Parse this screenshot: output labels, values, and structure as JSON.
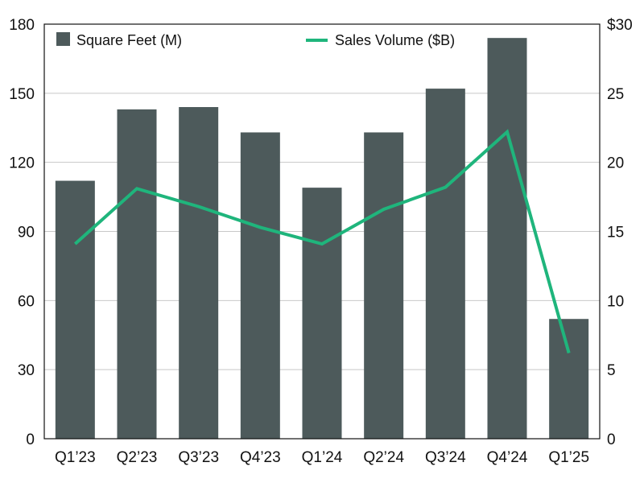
{
  "chart_data": {
    "type": "bar",
    "categories": [
      "Q1’23",
      "Q2’23",
      "Q3’23",
      "Q4’23",
      "Q1’24",
      "Q2’24",
      "Q3’24",
      "Q4’24",
      "Q1’25"
    ],
    "series": [
      {
        "name": "Square Feet (M)",
        "type": "bar",
        "axis": "left",
        "color": "#4d5a5b",
        "values": [
          112,
          143,
          144,
          133,
          109,
          133,
          152,
          174,
          52
        ]
      },
      {
        "name": "Sales Volume ($B)",
        "type": "line",
        "axis": "right",
        "color": "#1fb57c",
        "values": [
          14.1,
          18.1,
          16.8,
          15.3,
          14.1,
          16.6,
          18.2,
          22.2,
          6.2
        ]
      }
    ],
    "y_left": {
      "ticks": [
        "0",
        "30",
        "60",
        "90",
        "120",
        "150",
        "180"
      ],
      "lim": [
        0,
        180
      ]
    },
    "y_right": {
      "ticks": [
        "0",
        "5",
        "10",
        "15",
        "20",
        "25",
        "$30"
      ],
      "lim": [
        0,
        30
      ]
    },
    "grid": true,
    "legend_placement": "top",
    "title": "",
    "xlabel": "",
    "ylabel": ""
  }
}
